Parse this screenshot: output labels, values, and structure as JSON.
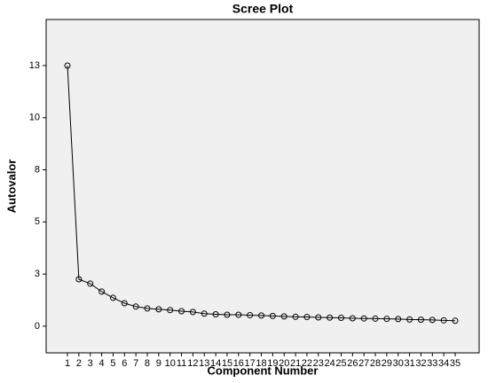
{
  "chart_data": {
    "type": "line",
    "title": "Scree Plot",
    "x_label": "Component Number",
    "y_label": "Autovalor",
    "x": [
      1,
      2,
      3,
      4,
      5,
      6,
      7,
      8,
      9,
      10,
      11,
      12,
      13,
      14,
      15,
      16,
      17,
      18,
      19,
      20,
      21,
      22,
      23,
      24,
      25,
      26,
      27,
      28,
      29,
      30,
      31,
      32,
      33,
      34,
      35
    ],
    "series": [
      {
        "name": "Autovalor",
        "color": "#000000",
        "values": [
          12.5,
          2.25,
          2.04,
          1.66,
          1.36,
          1.1,
          0.94,
          0.85,
          0.81,
          0.77,
          0.72,
          0.68,
          0.6,
          0.57,
          0.55,
          0.55,
          0.53,
          0.51,
          0.49,
          0.47,
          0.45,
          0.44,
          0.42,
          0.41,
          0.4,
          0.38,
          0.37,
          0.36,
          0.35,
          0.34,
          0.32,
          0.31,
          0.3,
          0.28,
          0.26
        ]
      }
    ],
    "xlim": [
      -0.87,
      37.1
    ],
    "ylim": [
      -1.28,
      14.71
    ],
    "yticks": [
      0,
      {
        "value": 2.5,
        "label": "3"
      },
      5,
      {
        "value": 7.5,
        "label": "8"
      },
      10,
      {
        "value": 12.5,
        "label": "13"
      }
    ],
    "grid": false
  }
}
